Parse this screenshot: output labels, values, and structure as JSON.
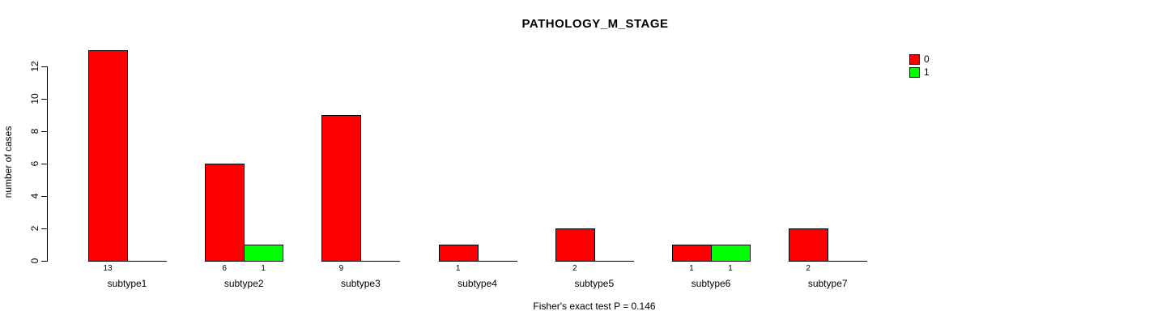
{
  "title": "PATHOLOGY_M_STAGE",
  "footer": "Fisher's exact test P = 0.146",
  "chart_data": {
    "type": "bar",
    "grouped": true,
    "title": "PATHOLOGY_M_STAGE",
    "xlabel": "",
    "ylabel": "number of cases",
    "categories": [
      "subtype1",
      "subtype2",
      "subtype3",
      "subtype4",
      "subtype5",
      "subtype6",
      "subtype7"
    ],
    "series": [
      {
        "name": "0",
        "color": "#ff0000",
        "values": [
          13,
          6,
          9,
          1,
          2,
          1,
          2
        ]
      },
      {
        "name": "1",
        "color": "#00ff00",
        "values": [
          0,
          1,
          0,
          0,
          0,
          1,
          0
        ]
      }
    ],
    "bar_count_labels": {
      "0": [
        "13",
        "6",
        "9",
        "1",
        "2",
        "1",
        "2"
      ],
      "1": [
        "",
        "1",
        "",
        "",
        "",
        "1",
        ""
      ]
    },
    "yticks": [
      "0",
      "2",
      "4",
      "6",
      "8",
      "10",
      "12"
    ],
    "ylim": [
      0,
      13
    ],
    "grid": false,
    "legend_position": "top-right",
    "annotation": "Fisher's exact test P = 0.146"
  },
  "legend": {
    "items": [
      {
        "label": "0",
        "color": "#ff0000"
      },
      {
        "label": "1",
        "color": "#00ff00"
      }
    ]
  },
  "colors": {
    "series0": "#ff0000",
    "series1": "#00ff00",
    "axis": "#000000",
    "background": "#ffffff"
  }
}
